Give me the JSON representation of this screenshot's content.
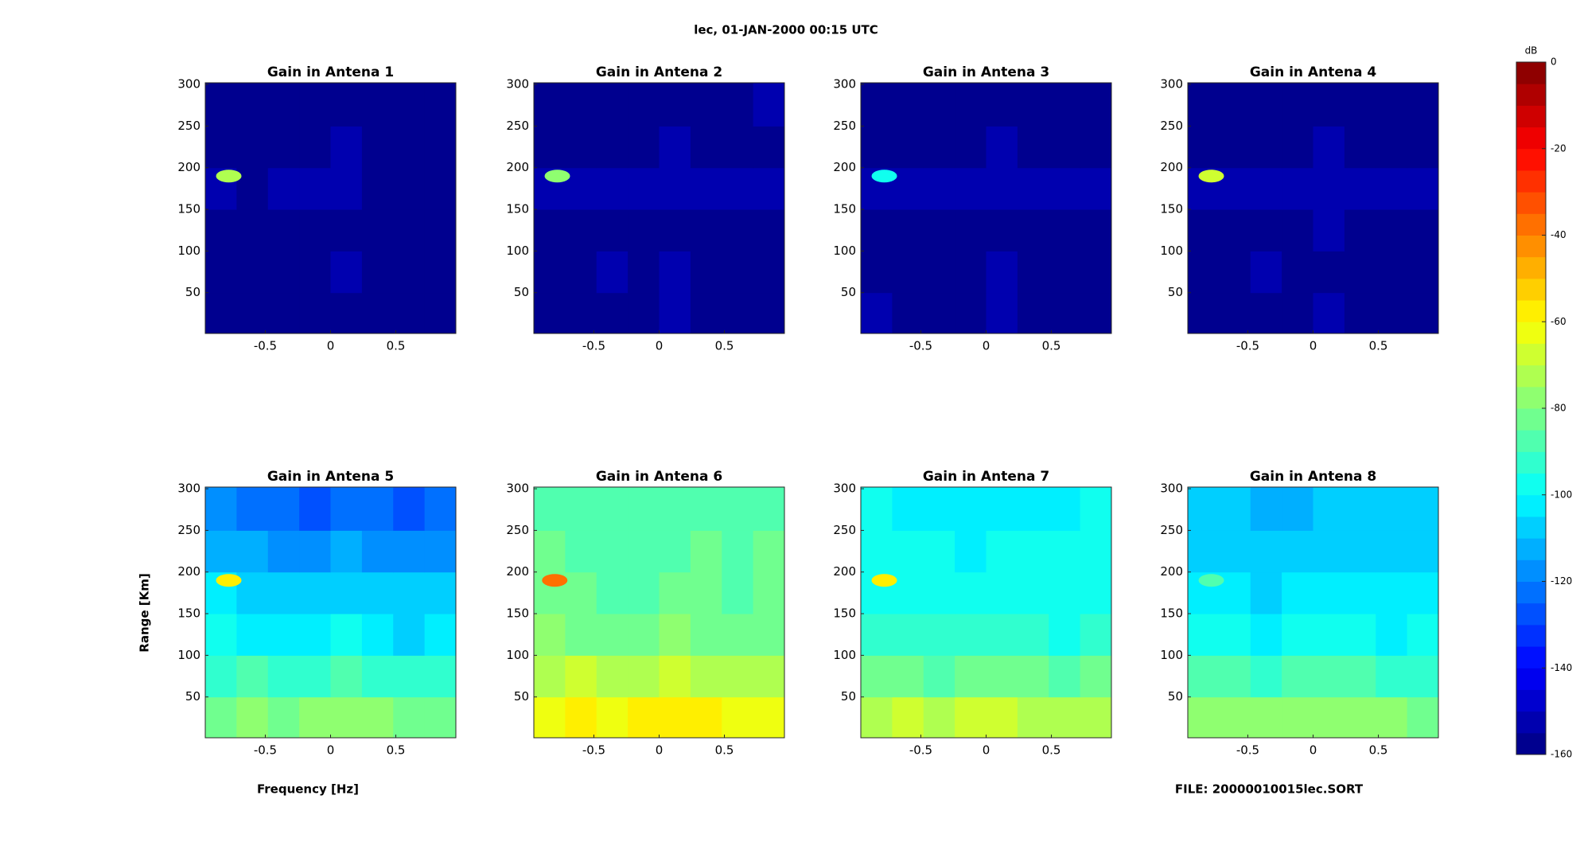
{
  "figure": {
    "title": "lec, 01-JAN-2000 00:15 UTC",
    "xlabel": "Frequency [Hz]",
    "ylabel": "Range [Km]",
    "file": "FILE: 20000010015lec.SORT"
  },
  "colorbar": {
    "label": "dB",
    "lim": [
      -160,
      0
    ],
    "ticks": [
      0,
      -20,
      -40,
      -60,
      -80,
      -100,
      -120,
      -140,
      -160
    ],
    "colormap": "jet",
    "levels": 32
  },
  "chart_data": [
    {
      "type": "heatmap",
      "title": "Gain in Antena 1",
      "xlim": [
        -0.96,
        0.96
      ],
      "ylim": [
        1,
        302
      ],
      "xticks": [
        -0.5,
        0,
        0.5
      ],
      "yticks": [
        50,
        100,
        150,
        200,
        250,
        300
      ],
      "xbins": [
        -0.96,
        -0.72,
        -0.48,
        -0.24,
        0,
        0.24,
        0.48,
        0.72,
        0.96
      ],
      "ybins": [
        1,
        50,
        100,
        150,
        200,
        250,
        302
      ],
      "z": [
        [
          -156,
          -156,
          -156,
          -156,
          -156,
          -156,
          -156,
          -156
        ],
        [
          -156,
          -156,
          -156,
          -156,
          -155,
          -156,
          -156,
          -156
        ],
        [
          -156,
          -156,
          -156,
          -156,
          -156,
          -156,
          -156,
          -156
        ],
        [
          -155,
          -156,
          -155,
          -155,
          -154,
          -156,
          -156,
          -156
        ],
        [
          -156,
          -156,
          -156,
          -156,
          -155,
          -156,
          -156,
          -156
        ],
        [
          -156,
          -156,
          -156,
          -156,
          -156,
          -156,
          -156,
          -156
        ]
      ],
      "echoes": [
        {
          "freq": -0.78,
          "range": 190,
          "value": -72
        }
      ]
    },
    {
      "type": "heatmap",
      "title": "Gain in Antena 2",
      "xlim": [
        -0.96,
        0.96
      ],
      "ylim": [
        1,
        302
      ],
      "xticks": [
        -0.5,
        0,
        0.5
      ],
      "yticks": [
        50,
        100,
        150,
        200,
        250,
        300
      ],
      "xbins": [
        -0.96,
        -0.72,
        -0.48,
        -0.24,
        0,
        0.24,
        0.48,
        0.72,
        0.96
      ],
      "ybins": [
        1,
        50,
        100,
        150,
        200,
        250,
        302
      ],
      "z": [
        [
          -156,
          -156,
          -156,
          -156,
          -155,
          -156,
          -156,
          -156
        ],
        [
          -156,
          -156,
          -155,
          -156,
          -155,
          -156,
          -156,
          -156
        ],
        [
          -156,
          -156,
          -156,
          -156,
          -156,
          -156,
          -156,
          -156
        ],
        [
          -155,
          -155,
          -155,
          -155,
          -154,
          -155,
          -155,
          -155
        ],
        [
          -156,
          -156,
          -156,
          -156,
          -155,
          -156,
          -156,
          -156
        ],
        [
          -156,
          -156,
          -156,
          -156,
          -156,
          -156,
          -156,
          -155
        ]
      ],
      "echoes": [
        {
          "freq": -0.78,
          "range": 190,
          "value": -80
        }
      ]
    },
    {
      "type": "heatmap",
      "title": "Gain in Antena 3",
      "xlim": [
        -0.96,
        0.96
      ],
      "ylim": [
        1,
        302
      ],
      "xticks": [
        -0.5,
        0,
        0.5
      ],
      "yticks": [
        50,
        100,
        150,
        200,
        250,
        300
      ],
      "xbins": [
        -0.96,
        -0.72,
        -0.48,
        -0.24,
        0,
        0.24,
        0.48,
        0.72,
        0.96
      ],
      "ybins": [
        1,
        50,
        100,
        150,
        200,
        250,
        302
      ],
      "z": [
        [
          -155,
          -156,
          -156,
          -156,
          -155,
          -156,
          -156,
          -156
        ],
        [
          -156,
          -156,
          -156,
          -156,
          -155,
          -156,
          -156,
          -156
        ],
        [
          -156,
          -156,
          -156,
          -156,
          -156,
          -156,
          -156,
          -156
        ],
        [
          -155,
          -155,
          -155,
          -155,
          -154,
          -155,
          -155,
          -155
        ],
        [
          -156,
          -156,
          -156,
          -156,
          -155,
          -156,
          -156,
          -156
        ],
        [
          -156,
          -156,
          -156,
          -156,
          -156,
          -156,
          -156,
          -156
        ]
      ],
      "echoes": [
        {
          "freq": -0.78,
          "range": 190,
          "value": -96
        }
      ]
    },
    {
      "type": "heatmap",
      "title": "Gain in Antena 4",
      "xlim": [
        -0.96,
        0.96
      ],
      "ylim": [
        1,
        302
      ],
      "xticks": [
        -0.5,
        0,
        0.5
      ],
      "yticks": [
        50,
        100,
        150,
        200,
        250,
        300
      ],
      "xbins": [
        -0.96,
        -0.72,
        -0.48,
        -0.24,
        0,
        0.24,
        0.48,
        0.72,
        0.96
      ],
      "ybins": [
        1,
        50,
        100,
        150,
        200,
        250,
        302
      ],
      "z": [
        [
          -156,
          -156,
          -156,
          -156,
          -155,
          -156,
          -156,
          -156
        ],
        [
          -156,
          -156,
          -155,
          -156,
          -156,
          -156,
          -156,
          -156
        ],
        [
          -156,
          -156,
          -156,
          -156,
          -155,
          -156,
          -156,
          -156
        ],
        [
          -154,
          -155,
          -155,
          -155,
          -154,
          -155,
          -155,
          -154
        ],
        [
          -156,
          -156,
          -156,
          -156,
          -155,
          -156,
          -156,
          -156
        ],
        [
          -156,
          -156,
          -156,
          -156,
          -156,
          -156,
          -156,
          -156
        ]
      ],
      "echoes": [
        {
          "freq": -0.78,
          "range": 190,
          "value": -66
        }
      ]
    },
    {
      "type": "heatmap",
      "title": "Gain in Antena 5",
      "xlim": [
        -0.96,
        0.96
      ],
      "ylim": [
        1,
        302
      ],
      "xticks": [
        -0.5,
        0,
        0.5
      ],
      "yticks": [
        50,
        100,
        150,
        200,
        250,
        300
      ],
      "xbins": [
        -0.96,
        -0.72,
        -0.48,
        -0.24,
        0,
        0.24,
        0.48,
        0.72,
        0.96
      ],
      "ybins": [
        1,
        50,
        100,
        150,
        200,
        250,
        302
      ],
      "z": [
        [
          -82,
          -80,
          -84,
          -80,
          -78,
          -80,
          -82,
          -84
        ],
        [
          -92,
          -90,
          -94,
          -92,
          -90,
          -92,
          -94,
          -92
        ],
        [
          -100,
          -102,
          -104,
          -102,
          -100,
          -104,
          -106,
          -104
        ],
        [
          -104,
          -106,
          -108,
          -108,
          -106,
          -108,
          -110,
          -108
        ],
        [
          -112,
          -114,
          -116,
          -116,
          -114,
          -116,
          -118,
          -116
        ],
        [
          -120,
          -122,
          -124,
          -126,
          -122,
          -124,
          -126,
          -124
        ]
      ],
      "echoes": [
        {
          "freq": -0.78,
          "range": 190,
          "value": -56
        }
      ]
    },
    {
      "type": "heatmap",
      "title": "Gain in Antena 6",
      "xlim": [
        -0.96,
        0.96
      ],
      "ylim": [
        1,
        302
      ],
      "xticks": [
        -0.5,
        0,
        0.5
      ],
      "yticks": [
        50,
        100,
        150,
        200,
        250,
        300
      ],
      "xbins": [
        -0.96,
        -0.72,
        -0.48,
        -0.24,
        0,
        0.24,
        0.48,
        0.72,
        0.96
      ],
      "ybins": [
        1,
        50,
        100,
        150,
        200,
        250,
        302
      ],
      "z": [
        [
          -62,
          -60,
          -64,
          -58,
          -58,
          -60,
          -62,
          -64
        ],
        [
          -72,
          -70,
          -74,
          -72,
          -70,
          -72,
          -74,
          -72
        ],
        [
          -80,
          -82,
          -84,
          -82,
          -80,
          -82,
          -84,
          -82
        ],
        [
          -82,
          -84,
          -86,
          -86,
          -84,
          -84,
          -86,
          -84
        ],
        [
          -84,
          -86,
          -86,
          -88,
          -86,
          -84,
          -86,
          -84
        ],
        [
          -86,
          -88,
          -90,
          -90,
          -88,
          -86,
          -88,
          -86
        ]
      ],
      "echoes": [
        {
          "freq": -0.8,
          "range": 190,
          "value": -38
        }
      ]
    },
    {
      "type": "heatmap",
      "title": "Gain in Antena 7",
      "xlim": [
        -0.96,
        0.96
      ],
      "ylim": [
        1,
        302
      ],
      "xticks": [
        -0.5,
        0,
        0.5
      ],
      "yticks": [
        50,
        100,
        150,
        200,
        250,
        300
      ],
      "xbins": [
        -0.96,
        -0.72,
        -0.48,
        -0.24,
        0,
        0.24,
        0.48,
        0.72,
        0.96
      ],
      "ybins": [
        1,
        50,
        100,
        150,
        200,
        250,
        302
      ],
      "z": [
        [
          -72,
          -70,
          -74,
          -70,
          -70,
          -72,
          -72,
          -74
        ],
        [
          -84,
          -82,
          -86,
          -84,
          -82,
          -84,
          -86,
          -84
        ],
        [
          -92,
          -94,
          -94,
          -94,
          -92,
          -94,
          -96,
          -94
        ],
        [
          -96,
          -98,
          -98,
          -98,
          -96,
          -98,
          -98,
          -96
        ],
        [
          -98,
          -100,
          -100,
          -102,
          -100,
          -100,
          -100,
          -98
        ],
        [
          -100,
          -102,
          -102,
          -104,
          -102,
          -102,
          -102,
          -100
        ]
      ],
      "echoes": [
        {
          "freq": -0.78,
          "range": 190,
          "value": -60
        }
      ]
    },
    {
      "type": "heatmap",
      "title": "Gain in Antena 8",
      "xlim": [
        -0.96,
        0.96
      ],
      "ylim": [
        1,
        302
      ],
      "xticks": [
        -0.5,
        0,
        0.5
      ],
      "yticks": [
        50,
        100,
        150,
        200,
        250,
        300
      ],
      "xbins": [
        -0.96,
        -0.72,
        -0.48,
        -0.24,
        0,
        0.24,
        0.48,
        0.72,
        0.96
      ],
      "ybins": [
        1,
        50,
        100,
        150,
        200,
        250,
        302
      ],
      "z": [
        [
          -78,
          -76,
          -80,
          -78,
          -76,
          -78,
          -80,
          -82
        ],
        [
          -90,
          -88,
          -92,
          -90,
          -88,
          -90,
          -92,
          -92
        ],
        [
          -98,
          -100,
          -102,
          -100,
          -98,
          -100,
          -102,
          -100
        ],
        [
          -102,
          -104,
          -106,
          -104,
          -104,
          -104,
          -104,
          -102
        ],
        [
          -106,
          -108,
          -108,
          -110,
          -108,
          -108,
          -108,
          -106
        ],
        [
          -108,
          -110,
          -112,
          -112,
          -110,
          -110,
          -110,
          -108
        ]
      ],
      "echoes": [
        {
          "freq": -0.78,
          "range": 190,
          "value": -90
        }
      ]
    }
  ]
}
